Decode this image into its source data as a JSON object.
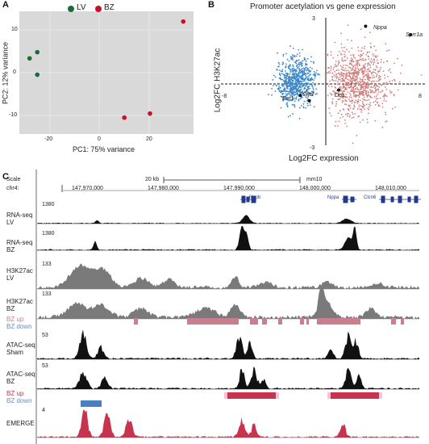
{
  "panels": {
    "A": {
      "letter": "A",
      "chart_data": {
        "type": "scatter",
        "legend": [
          {
            "name": "LV",
            "color": "#1f6b36"
          },
          {
            "name": "BZ",
            "color": "#c8102e"
          }
        ],
        "series": [
          {
            "name": "LV",
            "points": [
              [
                -26,
                3.5
              ],
              [
                -23,
                5
              ],
              [
                -23,
                -0.5
              ]
            ]
          },
          {
            "name": "BZ",
            "points": [
              [
                11,
                -11
              ],
              [
                21,
                -10
              ],
              [
                34,
                12.5
              ]
            ]
          }
        ],
        "xlabel": "PC1: 75% variance",
        "ylabel": "PC2: 12% variance",
        "xticks": [
          "-20",
          "0",
          "20"
        ],
        "yticks": [
          "10",
          "0",
          "-10"
        ],
        "xlim": [
          -30,
          38
        ],
        "ylim": [
          -15,
          15
        ],
        "background": "#d9d9d9"
      }
    },
    "B": {
      "letter": "B",
      "chart_data": {
        "type": "scatter",
        "title": "Promoter acetylation vs gene expression",
        "xlabel": "Log2FC expression",
        "ylabel": "Log2FC H3K27ac",
        "xticks": [
          "-8",
          "8"
        ],
        "yticks": [
          "3",
          "-3"
        ],
        "xlim": [
          -8,
          8
        ],
        "ylim": [
          -3,
          3
        ],
        "colors": {
          "down": "#3a86c8",
          "up": "#d08080"
        },
        "labeled_genes": [
          {
            "name": "Nppa",
            "x": 3.3,
            "y": 2.6
          },
          {
            "name": "Sprr1a",
            "x": 6.8,
            "y": 2.2
          },
          {
            "name": "Des",
            "x": 1.2,
            "y": -0.4
          },
          {
            "name": "Eef1",
            "x": -1.8,
            "y": -0.65
          },
          {
            "name": "Ckt2",
            "x": -1.1,
            "y": -0.9
          }
        ]
      }
    },
    "C": {
      "letter": "C",
      "scale_label": "Scale",
      "chrom_label": "chr4:",
      "scale_text": "20 kb",
      "assembly": "mm10",
      "coords": [
        "147,970,000",
        "147,980,000",
        "147,990,000",
        "148,000,000",
        "148,010,000"
      ],
      "genes": [
        "Nppb",
        "Nppa",
        "Clcn6"
      ],
      "tracks": [
        {
          "name": "RNA-seq LV",
          "l1": "RNA-seq",
          "l2": "LV",
          "max": "1380",
          "color": "#111111"
        },
        {
          "name": "RNA-seq BZ",
          "l1": "RNA-seq",
          "l2": "BZ",
          "max": "1380",
          "color": "#111111"
        },
        {
          "name": "H3K27ac LV",
          "l1": "H3K27ac",
          "l2": "LV",
          "max": "133",
          "color": "#7a7a7a"
        },
        {
          "name": "H3K27ac BZ",
          "l1": "H3K27ac",
          "l2": "BZ",
          "max": "133",
          "color": "#7a7a7a"
        },
        {
          "name": "ATAC-seq Sham",
          "l1": "ATAC-seq",
          "l2": "Sham",
          "max": "53",
          "color": "#111111"
        },
        {
          "name": "ATAC-seq BZ",
          "l1": "ATAC-seq",
          "l2": "BZ",
          "max": "53",
          "color": "#111111"
        },
        {
          "name": "EMERGE",
          "l1": "EMERGE",
          "l2": "",
          "max": "4",
          "color": "#c8334e"
        }
      ],
      "diff_labels": {
        "up": "BZ up",
        "down": "BZ down",
        "up_color": "#c97f8e",
        "down_color": "#6a8cc4"
      }
    }
  }
}
